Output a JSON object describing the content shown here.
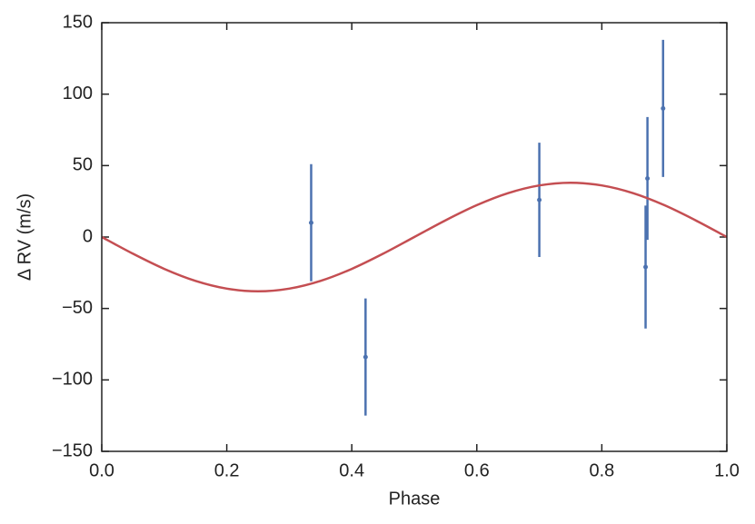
{
  "chart_data": {
    "type": "scatter",
    "x_label": "Phase",
    "y_label": "Δ RV (m/s)",
    "xlim": [
      0,
      1
    ],
    "ylim": [
      -150,
      150
    ],
    "xticks": [
      {
        "value": 0,
        "label": "0.0"
      },
      {
        "value": 0.2,
        "label": "0.2"
      },
      {
        "value": 0.4,
        "label": "0.4"
      },
      {
        "value": 0.6,
        "label": "0.6"
      },
      {
        "value": 0.8,
        "label": "0.8"
      },
      {
        "value": 1,
        "label": "1.0"
      }
    ],
    "yticks": [
      {
        "value": -150,
        "label": "−150"
      },
      {
        "value": -100,
        "label": "−100"
      },
      {
        "value": -50,
        "label": "−50"
      },
      0,
      50,
      100,
      150
    ],
    "series": [
      {
        "type": "errorbar",
        "color": "#4c72b0",
        "x": [
          0.335,
          0.422,
          0.7,
          0.87,
          0.873,
          0.898
        ],
        "values": [
          10,
          -84,
          26,
          -21,
          41,
          90
        ],
        "errors": [
          41,
          41,
          40,
          43,
          43,
          48
        ]
      },
      {
        "type": "line",
        "color": "#c44e52",
        "x": [
          0,
          0.05,
          0.1,
          0.15,
          0.2,
          0.25,
          0.3,
          0.35,
          0.4,
          0.45,
          0.5,
          0.55,
          0.6,
          0.65,
          0.7,
          0.75,
          0.8,
          0.85,
          0.9,
          0.95,
          1
        ],
        "values": [
          0,
          -11.7,
          -22.3,
          -30.7,
          -36.1,
          -38,
          -36.1,
          -30.7,
          -22.3,
          -11.7,
          0,
          11.7,
          22.3,
          30.7,
          36.1,
          38,
          36.1,
          30.7,
          22.3,
          11.7,
          0
        ]
      }
    ]
  }
}
